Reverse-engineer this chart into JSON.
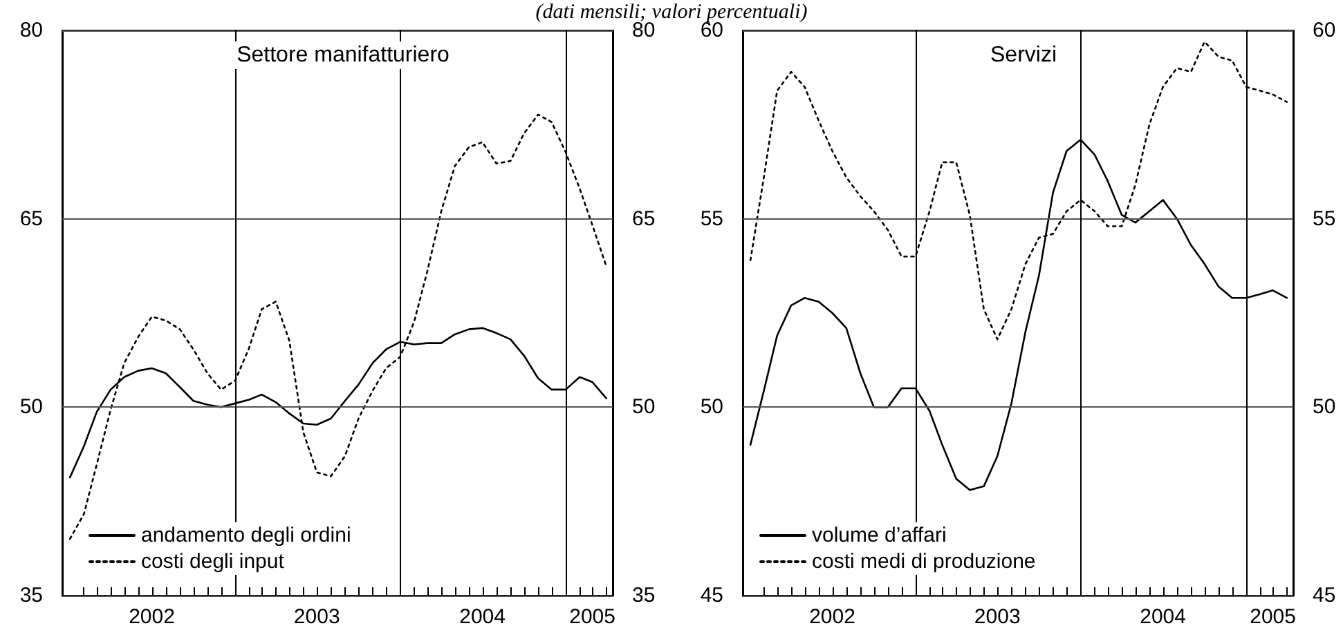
{
  "chart_data": [
    {
      "type": "line",
      "title": "Settore manifatturiero",
      "subtitle": "(dati mensili; valori percentuali)",
      "x": [
        "2002-01",
        "2002-02",
        "2002-03",
        "2002-04",
        "2002-05",
        "2002-06",
        "2002-07",
        "2002-08",
        "2002-09",
        "2002-10",
        "2002-11",
        "2002-12",
        "2003-01",
        "2003-02",
        "2003-03",
        "2003-04",
        "2003-05",
        "2003-06",
        "2003-07",
        "2003-08",
        "2003-09",
        "2003-10",
        "2003-11",
        "2003-12",
        "2004-01",
        "2004-02",
        "2004-03",
        "2004-04",
        "2004-05",
        "2004-06",
        "2004-07",
        "2004-08",
        "2004-09",
        "2004-10",
        "2004-11",
        "2004-12",
        "2005-01",
        "2005-02",
        "2005-03",
        "2005-04"
      ],
      "series": [
        {
          "name": "andamento degli ordini",
          "color": "#000000",
          "line_style": "solid",
          "values": [
            44.4,
            46.9,
            49.6,
            51.4,
            52.4,
            52.9,
            53.1,
            52.7,
            51.6,
            50.5,
            50.2,
            50.0,
            50.3,
            50.6,
            51.0,
            50.4,
            49.5,
            48.7,
            48.6,
            49.1,
            50.5,
            51.8,
            53.5,
            54.6,
            55.2,
            55.0,
            55.1,
            55.1,
            55.8,
            56.2,
            56.3,
            55.9,
            55.4,
            54.1,
            52.3,
            51.4,
            51.4,
            52.4,
            52.0,
            50.7
          ]
        },
        {
          "name": "costi degli input",
          "color": "#000000",
          "line_style": "dotted",
          "values": [
            39.5,
            41.5,
            45.4,
            49.8,
            53.5,
            55.6,
            57.2,
            56.9,
            56.2,
            54.6,
            52.7,
            51.4,
            52.1,
            54.7,
            57.8,
            58.4,
            55.3,
            48.0,
            44.8,
            44.5,
            46.1,
            49.1,
            51.3,
            53.1,
            54.0,
            56.8,
            60.8,
            65.6,
            69.2,
            70.7,
            71.1,
            69.4,
            69.6,
            71.8,
            73.3,
            72.7,
            70.3,
            67.4,
            64.5,
            61.2
          ]
        }
      ],
      "xlim": [
        "2001-12-15",
        "2005-04-15"
      ],
      "xticks": [
        {
          "value": "2002-02",
          "label": null
        },
        {
          "value": "2002-03",
          "label": null
        },
        {
          "value": "2002-04",
          "label": null
        },
        {
          "value": "2002-05",
          "label": null
        },
        {
          "value": "2002-06",
          "label": null
        },
        {
          "value": "2002-07",
          "label": "2002"
        },
        {
          "value": "2002-08",
          "label": null
        },
        {
          "value": "2002-09",
          "label": null
        },
        {
          "value": "2002-10",
          "label": null
        },
        {
          "value": "2002-11",
          "label": null
        },
        {
          "value": "2002-12",
          "label": null
        },
        {
          "value": "2003-02",
          "label": null
        },
        {
          "value": "2003-03",
          "label": null
        },
        {
          "value": "2003-04",
          "label": null
        },
        {
          "value": "2003-05",
          "label": null
        },
        {
          "value": "2003-06",
          "label": null
        },
        {
          "value": "2003-07",
          "label": "2003"
        },
        {
          "value": "2003-08",
          "label": null
        },
        {
          "value": "2003-09",
          "label": null
        },
        {
          "value": "2003-10",
          "label": null
        },
        {
          "value": "2003-11",
          "label": null
        },
        {
          "value": "2003-12",
          "label": null
        },
        {
          "value": "2004-02",
          "label": null
        },
        {
          "value": "2004-03",
          "label": null
        },
        {
          "value": "2004-04",
          "label": null
        },
        {
          "value": "2004-05",
          "label": null
        },
        {
          "value": "2004-06",
          "label": null
        },
        {
          "value": "2004-07",
          "label": "2004"
        },
        {
          "value": "2004-08",
          "label": null
        },
        {
          "value": "2004-09",
          "label": null
        },
        {
          "value": "2004-10",
          "label": null
        },
        {
          "value": "2004-11",
          "label": null
        },
        {
          "value": "2004-12",
          "label": null
        },
        {
          "value": "2005-02",
          "label": null
        },
        {
          "value": "2005-03",
          "label": "2005"
        },
        {
          "value": "2005-04",
          "label": null
        }
      ],
      "ylim": [
        35,
        80
      ],
      "yticks": [
        35,
        50,
        65,
        80
      ],
      "y2lim": [
        35,
        80
      ],
      "y2ticks": [
        35,
        50,
        65,
        80
      ],
      "ref_lines": [
        {
          "axis": "x",
          "value": "2003-01",
          "color": "#000000"
        },
        {
          "axis": "x",
          "value": "2004-01",
          "color": "#000000"
        },
        {
          "axis": "x",
          "value": "2005-01",
          "color": "#000000"
        }
      ],
      "grid": "y",
      "legend": "bottom left",
      "marker": "none"
    },
    {
      "type": "line",
      "title": "Servizi",
      "x": [
        "2002-01",
        "2002-02",
        "2002-03",
        "2002-04",
        "2002-05",
        "2002-06",
        "2002-07",
        "2002-08",
        "2002-09",
        "2002-10",
        "2002-11",
        "2002-12",
        "2003-01",
        "2003-02",
        "2003-03",
        "2003-04",
        "2003-05",
        "2003-06",
        "2003-07",
        "2003-08",
        "2003-09",
        "2003-10",
        "2003-11",
        "2003-12",
        "2004-01",
        "2004-02",
        "2004-03",
        "2004-04",
        "2004-05",
        "2004-06",
        "2004-07",
        "2004-08",
        "2004-09",
        "2004-10",
        "2004-11",
        "2004-12",
        "2005-01",
        "2005-02",
        "2005-03",
        "2005-04"
      ],
      "series": [
        {
          "name": "volume d’affari",
          "color": "#000000",
          "line_style": "solid",
          "values": [
            49.0,
            50.5,
            51.9,
            52.7,
            52.9,
            52.8,
            52.5,
            52.1,
            50.9,
            50.0,
            50.0,
            50.5,
            50.5,
            49.9,
            49.0,
            48.1,
            47.8,
            47.9,
            48.7,
            50.1,
            52.0,
            53.5,
            55.7,
            56.8,
            57.1,
            56.7,
            56.0,
            55.1,
            54.9,
            55.2,
            55.5,
            55.0,
            54.3,
            53.8,
            53.2,
            52.9,
            52.9,
            53.0,
            53.1,
            52.9
          ]
        },
        {
          "name": "costi medi di produzione",
          "color": "#000000",
          "line_style": "dotted",
          "values": [
            53.9,
            56.2,
            58.4,
            58.9,
            58.5,
            57.6,
            56.8,
            56.1,
            55.6,
            55.2,
            54.7,
            54.0,
            54.0,
            55.2,
            56.5,
            56.5,
            55.1,
            52.6,
            51.8,
            52.6,
            53.8,
            54.5,
            54.6,
            55.2,
            55.5,
            55.2,
            54.8,
            54.8,
            55.9,
            57.5,
            58.5,
            59.0,
            58.9,
            59.7,
            59.3,
            59.2,
            58.5,
            58.4,
            58.3,
            58.1
          ]
        }
      ],
      "xlim": [
        "2001-12-15",
        "2005-04-15"
      ],
      "xticks": [
        {
          "value": "2002-02",
          "label": null
        },
        {
          "value": "2002-03",
          "label": null
        },
        {
          "value": "2002-04",
          "label": null
        },
        {
          "value": "2002-05",
          "label": null
        },
        {
          "value": "2002-06",
          "label": null
        },
        {
          "value": "2002-07",
          "label": "2002"
        },
        {
          "value": "2002-08",
          "label": null
        },
        {
          "value": "2002-09",
          "label": null
        },
        {
          "value": "2002-10",
          "label": null
        },
        {
          "value": "2002-11",
          "label": null
        },
        {
          "value": "2002-12",
          "label": null
        },
        {
          "value": "2003-02",
          "label": null
        },
        {
          "value": "2003-03",
          "label": null
        },
        {
          "value": "2003-04",
          "label": null
        },
        {
          "value": "2003-05",
          "label": null
        },
        {
          "value": "2003-06",
          "label": null
        },
        {
          "value": "2003-07",
          "label": "2003"
        },
        {
          "value": "2003-08",
          "label": null
        },
        {
          "value": "2003-09",
          "label": null
        },
        {
          "value": "2003-10",
          "label": null
        },
        {
          "value": "2003-11",
          "label": null
        },
        {
          "value": "2003-12",
          "label": null
        },
        {
          "value": "2004-02",
          "label": null
        },
        {
          "value": "2004-03",
          "label": null
        },
        {
          "value": "2004-04",
          "label": null
        },
        {
          "value": "2004-05",
          "label": null
        },
        {
          "value": "2004-06",
          "label": null
        },
        {
          "value": "2004-07",
          "label": "2004"
        },
        {
          "value": "2004-08",
          "label": null
        },
        {
          "value": "2004-09",
          "label": null
        },
        {
          "value": "2004-10",
          "label": null
        },
        {
          "value": "2004-11",
          "label": null
        },
        {
          "value": "2004-12",
          "label": null
        },
        {
          "value": "2005-02",
          "label": null
        },
        {
          "value": "2005-03",
          "label": "2005"
        },
        {
          "value": "2005-04",
          "label": null
        }
      ],
      "ylim": [
        45,
        60
      ],
      "yticks": [
        45,
        50,
        55,
        60
      ],
      "y2lim": [
        45,
        60
      ],
      "y2ticks": [
        45,
        50,
        55,
        60
      ],
      "ref_lines": [
        {
          "axis": "x",
          "value": "2003-01",
          "color": "#000000"
        },
        {
          "axis": "x",
          "value": "2004-01",
          "color": "#000000"
        },
        {
          "axis": "x",
          "value": "2005-01",
          "color": "#000000"
        }
      ],
      "grid": "y",
      "legend": "bottom left",
      "marker": "none"
    }
  ]
}
